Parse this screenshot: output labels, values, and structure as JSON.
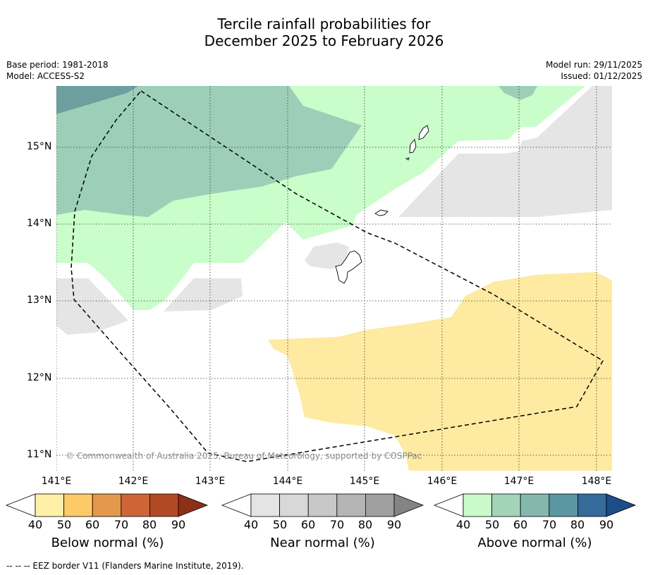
{
  "title_line1": "Tercile rainfall probabilities for",
  "title_line2": "December 2025 to February 2026",
  "base_period": "Base period: 1981-2018",
  "model": "Model: ACCESS-S2",
  "model_run": "Model run: 29/11/2025",
  "issued": "Issued: 01/12/2025",
  "copyright": "© Commonwealth of Australia 2025, Bureau of Meteorology, supported by COSPPac",
  "footnote": "--  --  -- EEZ border V11 (Flanders Marine Institute, 2019).",
  "map": {
    "lat_labels": [
      "15°N",
      "14°N",
      "13°N",
      "12°N",
      "11°N"
    ],
    "lon_labels": [
      "141°E",
      "142°E",
      "143°E",
      "144°E",
      "145°E",
      "146°E",
      "147°E",
      "148°E"
    ]
  },
  "legends": [
    {
      "title": "Below normal (%)",
      "ticks": [
        "40",
        "50",
        "60",
        "70",
        "80",
        "90"
      ],
      "colors": [
        "#fff0a8",
        "#fdca68",
        "#e3984c",
        "#cf6536",
        "#b24925",
        "#8e2f17"
      ]
    },
    {
      "title": "Near normal (%)",
      "ticks": [
        "40",
        "50",
        "60",
        "70",
        "80",
        "90"
      ],
      "colors": [
        "#e4e4e4",
        "#d8d8d8",
        "#c8c8c8",
        "#b4b4b4",
        "#a0a0a0",
        "#848484"
      ]
    },
    {
      "title": "Above normal (%)",
      "ticks": [
        "40",
        "50",
        "60",
        "70",
        "80",
        "90"
      ],
      "colors": [
        "#c9fbc9",
        "#a3d4b8",
        "#84b8ae",
        "#5b96a4",
        "#356b9b",
        "#1c4d86"
      ]
    }
  ],
  "colors": {
    "above_50": "#c9fdc9",
    "above_60": "#9dcfb8",
    "above_70": "#6d9f9f",
    "near_40": "#e5e5e5",
    "below_40": "#feeaa0"
  }
}
